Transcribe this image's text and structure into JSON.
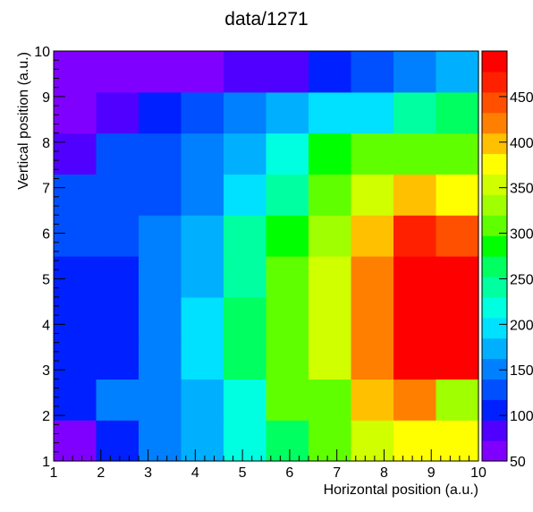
{
  "chart_data": {
    "type": "heatmap",
    "title": "data/1271",
    "xlabel": "Horizontal position (a.u.)",
    "ylabel": "Vertical position (a.u.)",
    "x_range": [
      1,
      10
    ],
    "y_range": [
      1,
      10
    ],
    "x_ticks": [
      "1",
      "2",
      "3",
      "4",
      "5",
      "6",
      "7",
      "8",
      "9",
      "10"
    ],
    "y_ticks": [
      "1",
      "2",
      "3",
      "4",
      "5",
      "6",
      "7",
      "8",
      "9",
      "10"
    ],
    "z_range": [
      50,
      500
    ],
    "colorbar_ticks": [
      "50",
      "100",
      "150",
      "200",
      "250",
      "300",
      "350",
      "400",
      "450"
    ],
    "palette": [
      "#8000ff",
      "#5000ff",
      "#0020ff",
      "#0050ff",
      "#0080ff",
      "#00b0ff",
      "#00e0ff",
      "#00ffe0",
      "#00ffa0",
      "#00ff60",
      "#00ff00",
      "#60ff00",
      "#a0ff00",
      "#d0ff00",
      "#ffff00",
      "#ffc000",
      "#ff8000",
      "#ff5000",
      "#ff2000",
      "#ff0000"
    ],
    "values": [
      [
        60,
        110,
        160,
        180,
        220,
        270,
        300,
        350,
        380,
        380
      ],
      [
        110,
        160,
        160,
        180,
        220,
        300,
        310,
        390,
        420,
        340
      ],
      [
        110,
        110,
        160,
        200,
        260,
        300,
        350,
        420,
        480,
        480
      ],
      [
        110,
        110,
        160,
        200,
        260,
        300,
        350,
        420,
        480,
        480
      ],
      [
        110,
        110,
        160,
        180,
        230,
        300,
        350,
        420,
        480,
        480
      ],
      [
        130,
        130,
        160,
        180,
        230,
        280,
        330,
        390,
        460,
        440
      ],
      [
        130,
        130,
        130,
        160,
        200,
        230,
        300,
        350,
        390,
        380
      ],
      [
        80,
        130,
        130,
        160,
        180,
        210,
        280,
        300,
        300,
        300
      ],
      [
        70,
        90,
        100,
        120,
        150,
        180,
        200,
        200,
        230,
        270
      ],
      [
        70,
        70,
        70,
        70,
        90,
        90,
        110,
        120,
        150,
        180
      ]
    ]
  }
}
